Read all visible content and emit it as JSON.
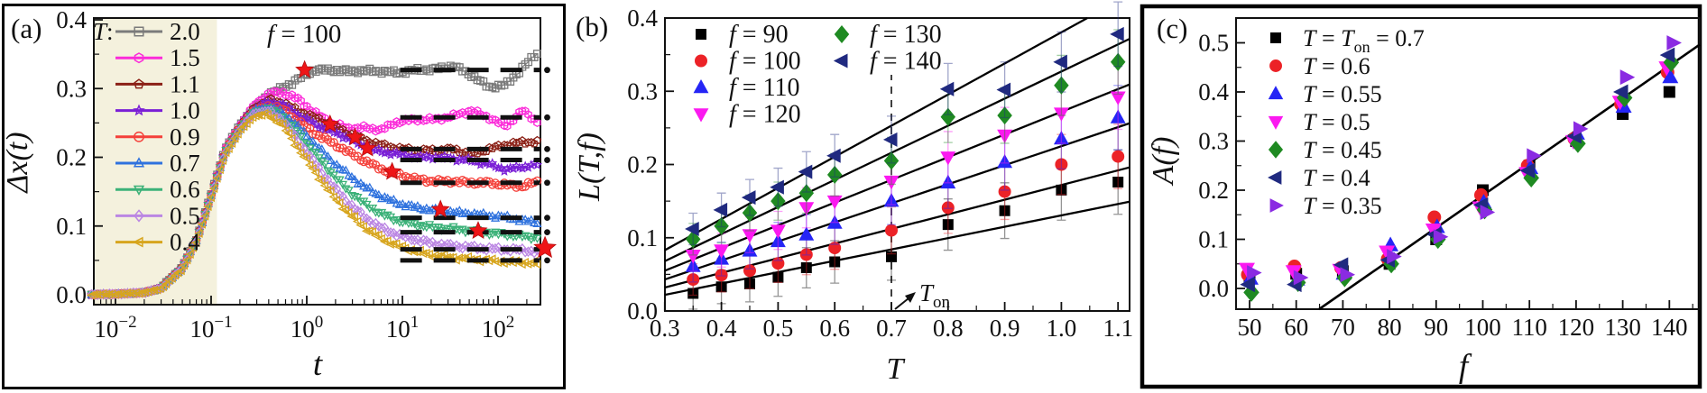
{
  "figure": {
    "description": "Three-panel physics figure: depinning/creep dynamics vs temperature and force",
    "panel_tags": [
      "(a)",
      "(b)",
      "(c)"
    ]
  },
  "chart_data": [
    {
      "type": "line",
      "panel_tag": "(a)",
      "x_scale": "log",
      "xlabel_segments": [
        {
          "t": "t",
          "it": true
        }
      ],
      "ylabel_segments": [
        {
          "t": "Δx(t)",
          "it": true
        }
      ],
      "x_tick_exponents": [
        -2,
        -1,
        0,
        1,
        2
      ],
      "y_tick_labels": [
        "0.0",
        "0.1",
        "0.2",
        "0.3",
        "0.4"
      ],
      "ylim": [
        0.0,
        0.4
      ],
      "annotation_segments": [
        {
          "t": "f",
          "it": true
        },
        {
          "t": " = 100"
        }
      ],
      "legend_title_segments": [
        {
          "t": "T",
          "it": true
        },
        {
          "t": ":"
        }
      ],
      "shade_color": "#f4f1dd",
      "shade_t_range": [
        0.0053,
        0.115
      ],
      "t_anchors": [
        0.005,
        0.01,
        0.02,
        0.03,
        0.05,
        0.07,
        0.1,
        0.14,
        0.2,
        0.28,
        0.4,
        0.55,
        0.8,
        1.2,
        1.8,
        2.7,
        4,
        6,
        9,
        14,
        22,
        34,
        52,
        80,
        120,
        180,
        270
      ],
      "series": [
        {
          "label": "2.0",
          "color": "#7b7b7b",
          "marker": "square",
          "values": [
            0,
            0.001,
            0.003,
            0.01,
            0.04,
            0.08,
            0.146,
            0.212,
            0.247,
            0.272,
            0.292,
            0.3,
            0.313,
            0.327,
            0.327,
            0.325,
            0.326,
            0.325,
            0.323,
            0.327,
            0.328,
            0.333,
            0.32,
            0.302,
            0.305,
            0.33,
            0.355
          ]
        },
        {
          "label": "1.5",
          "color": "#fb2bd9",
          "marker": "hexagon",
          "values": [
            0,
            0.001,
            0.003,
            0.01,
            0.04,
            0.08,
            0.145,
            0.211,
            0.246,
            0.276,
            0.292,
            0.295,
            0.285,
            0.265,
            0.25,
            0.242,
            0.243,
            0.24,
            0.252,
            0.255,
            0.255,
            0.26,
            0.268,
            0.258,
            0.245,
            0.268,
            0.25
          ]
        },
        {
          "label": "1.1",
          "color": "#8b2016",
          "marker": "pentagon",
          "values": [
            0,
            0.001,
            0.003,
            0.01,
            0.04,
            0.08,
            0.145,
            0.21,
            0.245,
            0.272,
            0.283,
            0.28,
            0.268,
            0.258,
            0.247,
            0.235,
            0.225,
            0.218,
            0.213,
            0.21,
            0.21,
            0.212,
            0.204,
            0.212,
            0.218,
            0.222,
            0.222
          ]
        },
        {
          "label": "1.0",
          "color": "#7a1fd6",
          "marker": "star",
          "values": [
            0,
            0.001,
            0.003,
            0.01,
            0.04,
            0.08,
            0.145,
            0.21,
            0.244,
            0.27,
            0.28,
            0.277,
            0.262,
            0.248,
            0.238,
            0.228,
            0.215,
            0.208,
            0.205,
            0.2,
            0.2,
            0.198,
            0.195,
            0.19,
            0.182,
            0.186,
            0.19
          ]
        },
        {
          "label": "0.9",
          "color": "#f4403a",
          "marker": "circle",
          "values": [
            0,
            0.001,
            0.003,
            0.01,
            0.039,
            0.079,
            0.144,
            0.209,
            0.243,
            0.268,
            0.275,
            0.27,
            0.253,
            0.235,
            0.222,
            0.208,
            0.195,
            0.183,
            0.175,
            0.168,
            0.165,
            0.165,
            0.163,
            0.163,
            0.16,
            0.158,
            0.165
          ]
        },
        {
          "label": "0.7",
          "color": "#2f72de",
          "marker": "triangle-up",
          "values": [
            0,
            0.001,
            0.003,
            0.01,
            0.039,
            0.079,
            0.144,
            0.208,
            0.242,
            0.268,
            0.273,
            0.265,
            0.245,
            0.22,
            0.195,
            0.175,
            0.157,
            0.143,
            0.133,
            0.127,
            0.123,
            0.12,
            0.118,
            0.115,
            0.113,
            0.108,
            0.105
          ]
        },
        {
          "label": "0.6",
          "color": "#3bb178",
          "marker": "triangle-down",
          "values": [
            0,
            0.001,
            0.003,
            0.009,
            0.038,
            0.078,
            0.143,
            0.207,
            0.241,
            0.266,
            0.27,
            0.26,
            0.235,
            0.207,
            0.178,
            0.152,
            0.133,
            0.118,
            0.108,
            0.102,
            0.098,
            0.096,
            0.093,
            0.09,
            0.088,
            0.085,
            0.083
          ]
        },
        {
          "label": "0.5",
          "color": "#bb86e3",
          "marker": "diamond",
          "values": [
            0,
            0.001,
            0.003,
            0.009,
            0.038,
            0.077,
            0.142,
            0.206,
            0.24,
            0.264,
            0.267,
            0.255,
            0.225,
            0.192,
            0.16,
            0.134,
            0.113,
            0.097,
            0.087,
            0.08,
            0.074,
            0.071,
            0.069,
            0.067,
            0.066,
            0.065,
            0.062
          ]
        },
        {
          "label": "0.4",
          "color": "#d7a51d",
          "marker": "triangle-left",
          "values": [
            0,
            0.001,
            0.003,
            0.009,
            0.037,
            0.076,
            0.141,
            0.204,
            0.238,
            0.26,
            0.262,
            0.248,
            0.215,
            0.18,
            0.147,
            0.12,
            0.098,
            0.082,
            0.071,
            0.063,
            0.057,
            0.054,
            0.052,
            0.05,
            0.048,
            0.047,
            0.045
          ]
        }
      ],
      "plateau_dashes": {
        "levels": [
          0.327,
          0.258,
          0.212,
          0.196,
          0.163,
          0.112,
          0.091,
          0.066,
          0.05
        ],
        "t_from": 9.5,
        "t_to": 275,
        "color": "#111111"
      },
      "edge_dot_levels": [
        0.327,
        0.258,
        0.212,
        0.196,
        0.163,
        0.112,
        0.091,
        0.066,
        0.05
      ],
      "stars": {
        "color": "#ee1517",
        "points": [
          [
            0.95,
            0.327
          ],
          [
            1.75,
            0.248
          ],
          [
            3.2,
            0.229
          ],
          [
            4.3,
            0.213
          ],
          [
            7.8,
            0.179
          ],
          [
            25,
            0.124
          ],
          [
            62,
            0.093
          ],
          [
            310,
            0.068
          ]
        ]
      }
    },
    {
      "type": "scatter",
      "panel_tag": "(b)",
      "xlabel_segments": [
        {
          "t": "T",
          "it": true
        }
      ],
      "ylabel_segments": [
        {
          "t": "L(T,f)",
          "it": true
        }
      ],
      "x_tick_labels": [
        "0.3",
        "0.4",
        "0.5",
        "0.6",
        "0.7",
        "0.8",
        "0.9",
        "1.0",
        "1.1"
      ],
      "y_tick_labels": [
        "0.0",
        "0.1",
        "0.2",
        "0.3",
        "0.4"
      ],
      "xlim": [
        0.3,
        1.1
      ],
      "ylim": [
        0.0,
        0.4
      ],
      "T_values": [
        0.35,
        0.4,
        0.45,
        0.5,
        0.55,
        0.6,
        0.7,
        0.8,
        0.9,
        1.0,
        1.1
      ],
      "series": [
        {
          "label_segments": [
            {
              "t": "f",
              "it": true
            },
            {
              "t": " = 90"
            }
          ],
          "color": "#000000",
          "marker": "square",
          "values": [
            0.024,
            0.033,
            0.037,
            0.046,
            0.059,
            0.067,
            0.074,
            0.118,
            0.137,
            0.165,
            0.176
          ],
          "fit_line": {
            "v_at_0_3": 0.022,
            "slope": 0.155
          }
        },
        {
          "label_segments": [
            {
              "t": "f",
              "it": true
            },
            {
              "t": " = 100"
            }
          ],
          "color": "#ec2227",
          "marker": "circle",
          "values": [
            0.043,
            0.049,
            0.055,
            0.065,
            0.077,
            0.086,
            0.11,
            0.141,
            0.163,
            0.2,
            0.211
          ],
          "fit_line": {
            "v_at_0_3": 0.032,
            "slope": 0.2
          }
        },
        {
          "label_segments": [
            {
              "t": "f",
              "it": true
            },
            {
              "t": " = 110"
            }
          ],
          "color": "#2525f5",
          "marker": "triangle-up",
          "values": [
            0.061,
            0.071,
            0.082,
            0.095,
            0.104,
            0.12,
            0.15,
            0.175,
            0.203,
            0.235,
            0.264
          ],
          "fit_line": {
            "v_at_0_3": 0.043,
            "slope": 0.26
          }
        },
        {
          "label_segments": [
            {
              "t": "f",
              "it": true
            },
            {
              "t": " = 120"
            }
          ],
          "color": "#fb19f0",
          "marker": "triangle-down",
          "values": [
            0.076,
            0.083,
            0.104,
            0.11,
            0.141,
            0.15,
            0.177,
            0.21,
            0.24,
            0.27,
            0.292
          ],
          "fit_line": {
            "v_at_0_3": 0.055,
            "slope": 0.31
          }
        },
        {
          "label_segments": [
            {
              "t": "f",
              "it": true
            },
            {
              "t": " = 130"
            }
          ],
          "color": "#1f8a22",
          "marker": "diamond",
          "values": [
            0.098,
            0.116,
            0.134,
            0.15,
            0.161,
            0.186,
            0.205,
            0.265,
            0.267,
            0.308,
            0.34
          ],
          "fit_line": {
            "v_at_0_3": 0.068,
            "slope": 0.37
          }
        },
        {
          "label_segments": [
            {
              "t": "f",
              "it": true
            },
            {
              "t": " = 140"
            }
          ],
          "color": "#202a80",
          "marker": "triangle-left",
          "values": [
            0.112,
            0.138,
            0.155,
            0.169,
            0.19,
            0.212,
            0.234,
            0.303,
            0.302,
            0.34,
            0.378
          ],
          "fit_line": {
            "v_at_0_3": 0.083,
            "slope": 0.425
          }
        }
      ],
      "error_bars": {
        "base": 0.02,
        "per_unit_T": 0.03
      },
      "onset": {
        "T": 0.7,
        "label_segments": [
          {
            "t": "T",
            "it": true
          },
          {
            "t": "on",
            "sub": true
          }
        ]
      }
    },
    {
      "type": "scatter",
      "panel_tag": "(c)",
      "xlabel_segments": [
        {
          "t": "f",
          "it": true
        }
      ],
      "ylabel_segments": [
        {
          "t": "A(f)",
          "it": true
        }
      ],
      "x_tick_labels": [
        "50",
        "60",
        "70",
        "80",
        "90",
        "100",
        "110",
        "120",
        "130",
        "140"
      ],
      "y_tick_labels": [
        "0.0",
        "0.1",
        "0.2",
        "0.3",
        "0.4",
        "0.5"
      ],
      "xlim": [
        50,
        140
      ],
      "ylim": [
        0.0,
        0.5
      ],
      "f_values": [
        50,
        60,
        70,
        80,
        90,
        100,
        110,
        120,
        130,
        140
      ],
      "series": [
        {
          "label_segments": [
            {
              "t": "T",
              "it": true
            },
            {
              "t": " = "
            },
            {
              "t": "T",
              "it": true
            },
            {
              "t": "on",
              "sub": true
            },
            {
              "t": " = 0.7"
            }
          ],
          "color": "#000000",
          "marker": "square",
          "x_offset": 0,
          "values": [
            0.02,
            0.03,
            0.035,
            0.05,
            0.1,
            0.2,
            0.25,
            0.3,
            0.355,
            0.4
          ]
        },
        {
          "label_segments": [
            {
              "t": "T",
              "it": true
            },
            {
              "t": " = 0.6"
            }
          ],
          "color": "#ec2227",
          "marker": "circle",
          "x_offset": -2,
          "values": [
            0.028,
            0.045,
            0.042,
            0.06,
            0.145,
            0.19,
            0.25,
            0.305,
            0.375,
            0.44
          ]
        },
        {
          "label_segments": [
            {
              "t": "T",
              "it": true
            },
            {
              "t": " = 0.55"
            }
          ],
          "color": "#2525f5",
          "marker": "triangle-up",
          "x_offset": 1,
          "values": [
            0.02,
            0.018,
            0.03,
            0.088,
            0.125,
            0.175,
            0.245,
            0.315,
            0.37,
            0.43
          ]
        },
        {
          "label_segments": [
            {
              "t": "T",
              "it": true
            },
            {
              "t": " = 0.5"
            }
          ],
          "color": "#fb19f0",
          "marker": "triangle-down",
          "x_offset": -3,
          "values": [
            0.04,
            0.035,
            0.038,
            0.075,
            0.12,
            0.165,
            0.235,
            0.3,
            0.38,
            0.45
          ]
        },
        {
          "label_segments": [
            {
              "t": "T",
              "it": true
            },
            {
              "t": " = 0.45"
            }
          ],
          "color": "#1f8a22",
          "marker": "diamond",
          "x_offset": 2,
          "values": [
            -0.008,
            0.012,
            0.022,
            0.05,
            0.1,
            0.16,
            0.225,
            0.295,
            0.388,
            0.46
          ]
        },
        {
          "label_segments": [
            {
              "t": "T",
              "it": true
            },
            {
              "t": " = 0.4"
            }
          ],
          "color": "#202a80",
          "marker": "triangle-left",
          "x_offset": -1,
          "values": [
            0.008,
            0.008,
            0.048,
            0.058,
            0.11,
            0.17,
            0.24,
            0.31,
            0.4,
            0.475
          ]
        },
        {
          "label_segments": [
            {
              "t": "T",
              "it": true
            },
            {
              "t": " = 0.35"
            }
          ],
          "color": "#8a2be2",
          "marker": "triangle-right",
          "x_offset": 4,
          "values": [
            0.032,
            0.022,
            0.028,
            0.065,
            0.105,
            0.155,
            0.27,
            0.325,
            0.43,
            0.5
          ]
        }
      ],
      "fit_line": {
        "f_zero": 71.3,
        "slope": 0.0066
      }
    }
  ]
}
